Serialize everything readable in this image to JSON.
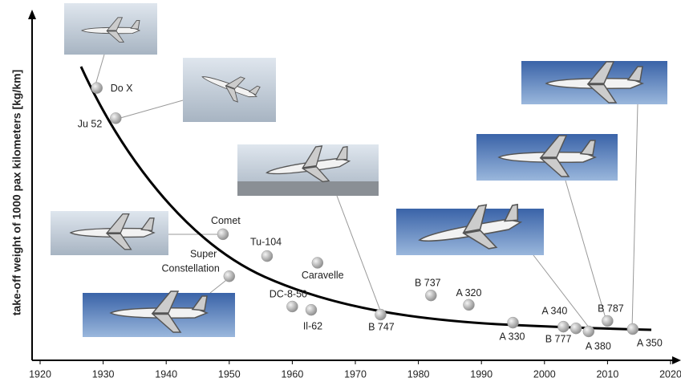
{
  "chart_data": {
    "type": "scatter",
    "y_label": "take-off weight of 1000 pax kilometers [kg/km]",
    "labels": [
      "Do X",
      "Ju 52",
      "Comet",
      "Tu-104",
      "Super Constellation",
      "Caravelle",
      "DC-8-50",
      "Il-62",
      "B 747",
      "B 737",
      "A 320",
      "A 330",
      "A 340",
      "B 777",
      "A 380",
      "B 787",
      "A 350"
    ],
    "x": [
      1929,
      1932,
      1949,
      1956,
      1950,
      1964,
      1960,
      1963,
      1974,
      1982,
      1988,
      1995,
      2003,
      2005,
      2007,
      2010,
      2014
    ],
    "y": [
      81,
      72,
      37.5,
      31,
      25,
      29,
      16,
      15,
      13.6,
      19.3,
      16.5,
      11.2,
      10,
      9.5,
      8.6,
      11.7,
      9.3
    ],
    "xlim": [
      1920,
      2020
    ],
    "xticks": [
      1920,
      1930,
      1940,
      1950,
      1960,
      1970,
      1980,
      1990,
      2000,
      2010,
      2020
    ],
    "ylim": [
      0,
      100
    ],
    "color": "#9a9a9a"
  }
}
